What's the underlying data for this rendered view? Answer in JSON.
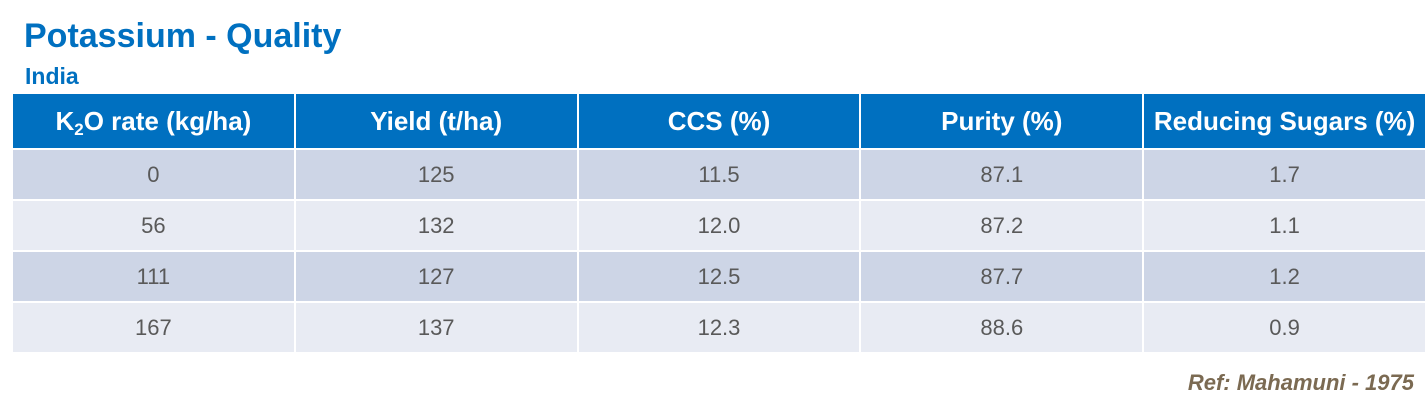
{
  "header": {
    "title": "Potassium - Quality",
    "subtitle": "India"
  },
  "table": {
    "columns": [
      [
        "K",
        "2",
        "O rate (kg/ha)"
      ],
      "Yield (t/ha)",
      "CCS (%)",
      "Purity (%)",
      "Reducing Sugars (%)"
    ],
    "rows": [
      [
        "0",
        "125",
        "11.5",
        "87.1",
        "1.7"
      ],
      [
        "56",
        "132",
        "12.0",
        "87.2",
        "1.1"
      ],
      [
        "111",
        "127",
        "12.5",
        "87.7",
        "1.2"
      ],
      [
        "167",
        "137",
        "12.3",
        "88.6",
        "0.9"
      ]
    ]
  },
  "footer": {
    "reference": "Ref: Mahamuni - 1975"
  }
}
